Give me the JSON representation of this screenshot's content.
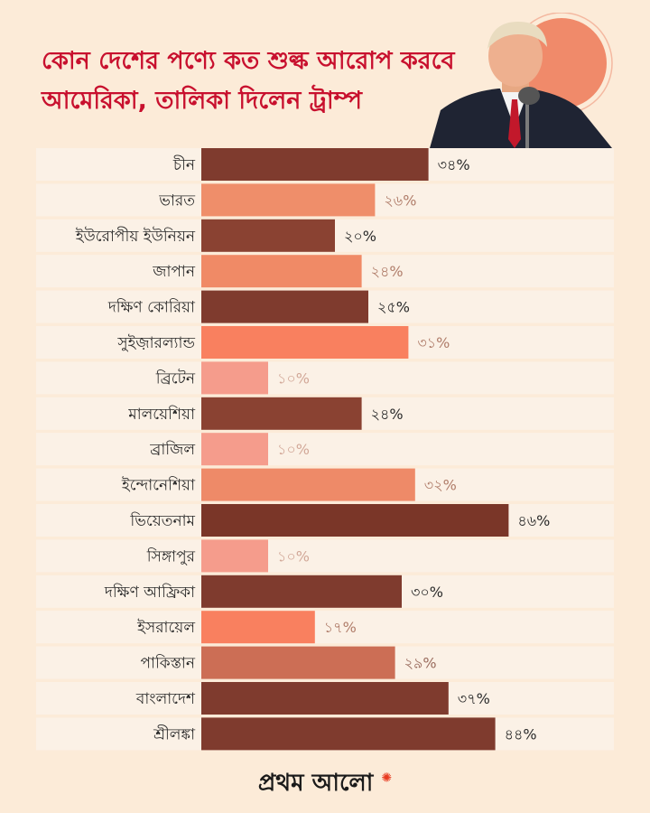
{
  "header": {
    "title_line1": "কোন দেশের পণ্যে কত শুল্ক আরোপ করবে",
    "title_line2": "আমেরিকা, তালিকা দিলেন ট্রাম্প"
  },
  "brand": {
    "logo_text": "প্রথম আলো",
    "logo_icon": "sun-icon"
  },
  "colors": {
    "title": "#c8102e",
    "dark": "#7f3b2e",
    "salmon": "#ef8e6a",
    "pink": "#f59c8c",
    "coral": "#f9805f",
    "orange": "#e36f4c",
    "dark_value": "#2a2a2a",
    "light_value": "#b07d6a"
  },
  "chart_data": {
    "type": "bar",
    "orientation": "horizontal",
    "categories": [
      "চীন",
      "ভারত",
      "ইউরোপীয় ইউনিয়ন",
      "জাপান",
      "দক্ষিণ কোরিয়া",
      "সুইজ়ারল্যান্ড",
      "ব্রিটেন",
      "মালয়েশিয়া",
      "ব্রাজিল",
      "ইন্দোনেশিয়া",
      "ভিয়েতনাম",
      "সিঙ্গাপুর",
      "দক্ষিণ আফ্রিকা",
      "ইসরায়েল",
      "পাকিস্তান",
      "বাংলাদেশ",
      "শ্রীলঙ্কা"
    ],
    "values": [
      34,
      26,
      20,
      24,
      25,
      31,
      10,
      24,
      10,
      32,
      46,
      10,
      30,
      17,
      29,
      37,
      44
    ],
    "value_labels": [
      "৩৪%",
      "২৬%",
      "২০%",
      "২৪%",
      "২৫%",
      "৩১%",
      "১০%",
      "২৪%",
      "১০%",
      "৩২%",
      "৪৬%",
      "১০%",
      "৩০%",
      "১৭%",
      "২৯%",
      "৩৭%",
      "৪৪%"
    ],
    "bar_colors": [
      "#7f3b2e",
      "#ef8e6a",
      "#8a4232",
      "#f08a66",
      "#7f3b2e",
      "#f9805f",
      "#f59c8c",
      "#8a4232",
      "#f59c8c",
      "#ee8a68",
      "#7a3628",
      "#f59c8c",
      "#7f3b2e",
      "#f9805f",
      "#cc6e55",
      "#7f3b2e",
      "#7f3b2e"
    ],
    "value_colors": [
      "#2a2a2a",
      "#b07d6a",
      "#2a2a2a",
      "#b07d6a",
      "#2a2a2a",
      "#b07d6a",
      "#d2a898",
      "#2a2a2a",
      "#d2a898",
      "#b07d6a",
      "#2a2a2a",
      "#d2a898",
      "#2a2a2a",
      "#b07d6a",
      "#9a6c5e",
      "#2a2a2a",
      "#2a2a2a"
    ],
    "xlim": [
      0,
      50
    ],
    "grid": false,
    "legend": "none"
  }
}
